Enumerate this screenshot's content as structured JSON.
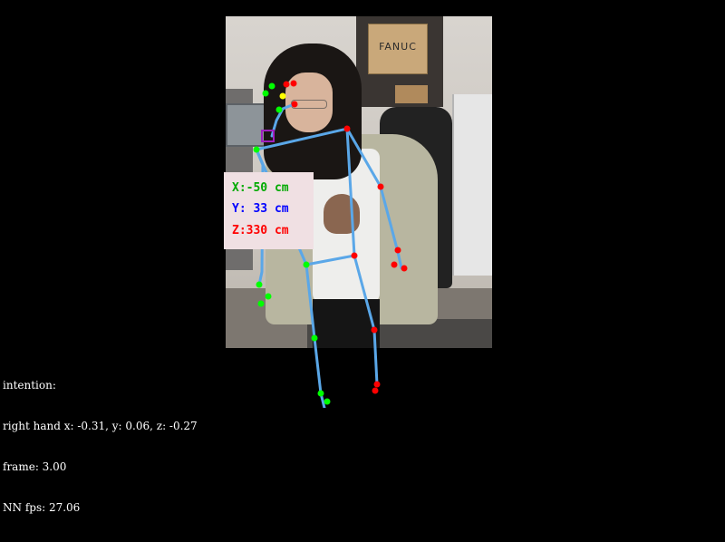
{
  "camera": {
    "background_box_label": "FANUC"
  },
  "overlay": {
    "x_label": "X:-50 cm",
    "y_label": "Y: 33 cm",
    "z_label": "Z:330 cm",
    "x_color": "#00aa00",
    "y_color": "#0000ff",
    "z_color": "#ff0000",
    "panel_color": "#f0e0e3"
  },
  "status": {
    "intention": "intention:",
    "right_hand": "right hand x: -0.31, y: 0.06, z: -0.27",
    "frame": "frame: 3.00",
    "fps": "NN fps: 27.06"
  },
  "skeleton_colors": {
    "bone": "#5aa7e8",
    "left_joint": "#00ff00",
    "right_joint": "#ff0000",
    "nose_joint": "#ffff00",
    "target_box": "#a020c0"
  }
}
